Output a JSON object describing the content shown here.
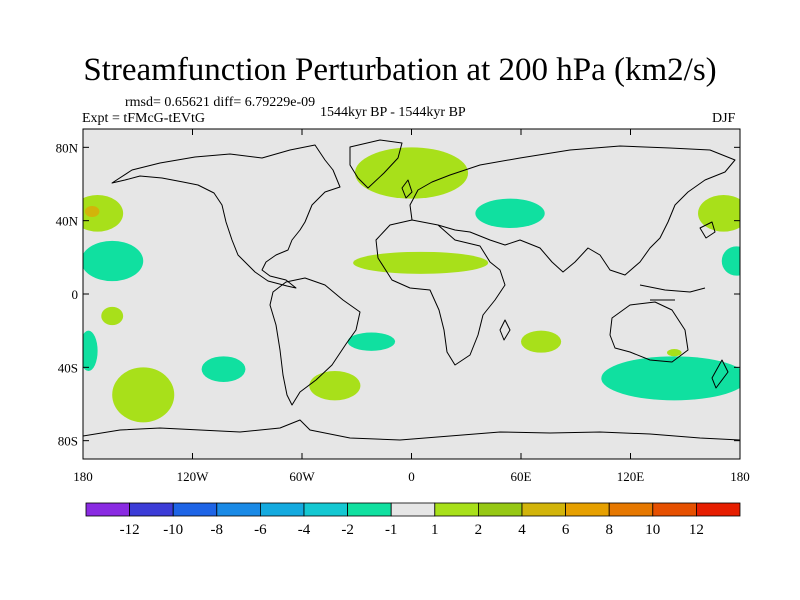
{
  "title": "Streamfunction Perturbation at 200 hPa (km2/s)",
  "stats": "rmsd= 0.65621 diff= 6.79229e-09",
  "experiment": "Expt = tFMcG-tEVtG",
  "period": "1544kyr BP - 1544kyr BP",
  "season": "DJF",
  "chart_data": {
    "type": "map",
    "projection": "cylindrical equidistant",
    "lon_range": [
      -180,
      180
    ],
    "lat_range": [
      -90,
      90
    ],
    "lon_ticks": [
      {
        "value": -180,
        "label": "180"
      },
      {
        "value": -120,
        "label": "120W"
      },
      {
        "value": -60,
        "label": "60W"
      },
      {
        "value": 0,
        "label": "0"
      },
      {
        "value": 60,
        "label": "60E"
      },
      {
        "value": 120,
        "label": "120E"
      },
      {
        "value": 180,
        "label": "180"
      }
    ],
    "lat_ticks": [
      {
        "value": 80,
        "label": "80N"
      },
      {
        "value": 40,
        "label": "40N"
      },
      {
        "value": 0,
        "label": "0"
      },
      {
        "value": -40,
        "label": "40S"
      },
      {
        "value": -80,
        "label": "80S"
      }
    ],
    "colorbar": {
      "colors": [
        "#8a2be2",
        "#3c3cd7",
        "#1e64e6",
        "#1a8ae6",
        "#14aadf",
        "#14c8d2",
        "#10e0a0",
        "#e6e6e6",
        "#a8e01a",
        "#96c814",
        "#d2b40a",
        "#e6a000",
        "#e67800",
        "#e65000",
        "#e61e00"
      ],
      "labels": [
        "-12",
        "-10",
        "-8",
        "-6",
        "-4",
        "-2",
        "-1",
        "1",
        "2",
        "4",
        "6",
        "8",
        "10",
        "12"
      ]
    },
    "anomalies": [
      {
        "lon": 0,
        "lat": 66,
        "rx": 31,
        "ry": 14,
        "color": "#a8e01a",
        "value": "1 to 2"
      },
      {
        "lon": 54,
        "lat": 44,
        "rx": 19,
        "ry": 8,
        "color": "#10e0a0",
        "value": "-1 to -2"
      },
      {
        "lon": 5,
        "lat": 17,
        "rx": 37,
        "ry": 6,
        "color": "#a8e01a",
        "value": "1 to 2"
      },
      {
        "lon": -172,
        "lat": 44,
        "rx": 14,
        "ry": 10,
        "color": "#a8e01a",
        "value": "1 to 2"
      },
      {
        "lon": -175,
        "lat": 45,
        "rx": 4,
        "ry": 3,
        "color": "#d2b40a",
        "value": "4 to 6"
      },
      {
        "lon": -164,
        "lat": 18,
        "rx": 17,
        "ry": 11,
        "color": "#10e0a0",
        "value": "-1 to -2"
      },
      {
        "lon": 171,
        "lat": 44,
        "rx": 14,
        "ry": 10,
        "color": "#a8e01a",
        "value": "1 to 2"
      },
      {
        "lon": 178,
        "lat": 18,
        "rx": 8,
        "ry": 8,
        "color": "#10e0a0",
        "value": "-1 to -2"
      },
      {
        "lon": -164,
        "lat": -12,
        "rx": 6,
        "ry": 5,
        "color": "#a8e01a",
        "value": "1 to 2"
      },
      {
        "lon": -177,
        "lat": -31,
        "rx": 5,
        "ry": 11,
        "color": "#10e0a0",
        "value": "-1 to -2"
      },
      {
        "lon": -147,
        "lat": -55,
        "rx": 17,
        "ry": 15,
        "color": "#a8e01a",
        "value": "1 to 2"
      },
      {
        "lon": -103,
        "lat": -41,
        "rx": 12,
        "ry": 7,
        "color": "#10e0a0",
        "value": "-1 to -2"
      },
      {
        "lon": -42,
        "lat": -50,
        "rx": 14,
        "ry": 8,
        "color": "#a8e01a",
        "value": "1 to 2"
      },
      {
        "lon": -22,
        "lat": -26,
        "rx": 13,
        "ry": 5,
        "color": "#10e0a0",
        "value": "-1 to -2"
      },
      {
        "lon": 71,
        "lat": -26,
        "rx": 11,
        "ry": 6,
        "color": "#a8e01a",
        "value": "1 to 2"
      },
      {
        "lon": 144,
        "lat": -46,
        "rx": 40,
        "ry": 12,
        "color": "#10e0a0",
        "value": "-1 to -2"
      },
      {
        "lon": 144,
        "lat": -32,
        "rx": 4,
        "ry": 2,
        "color": "#a8e01a",
        "value": "1 to 2"
      }
    ]
  }
}
